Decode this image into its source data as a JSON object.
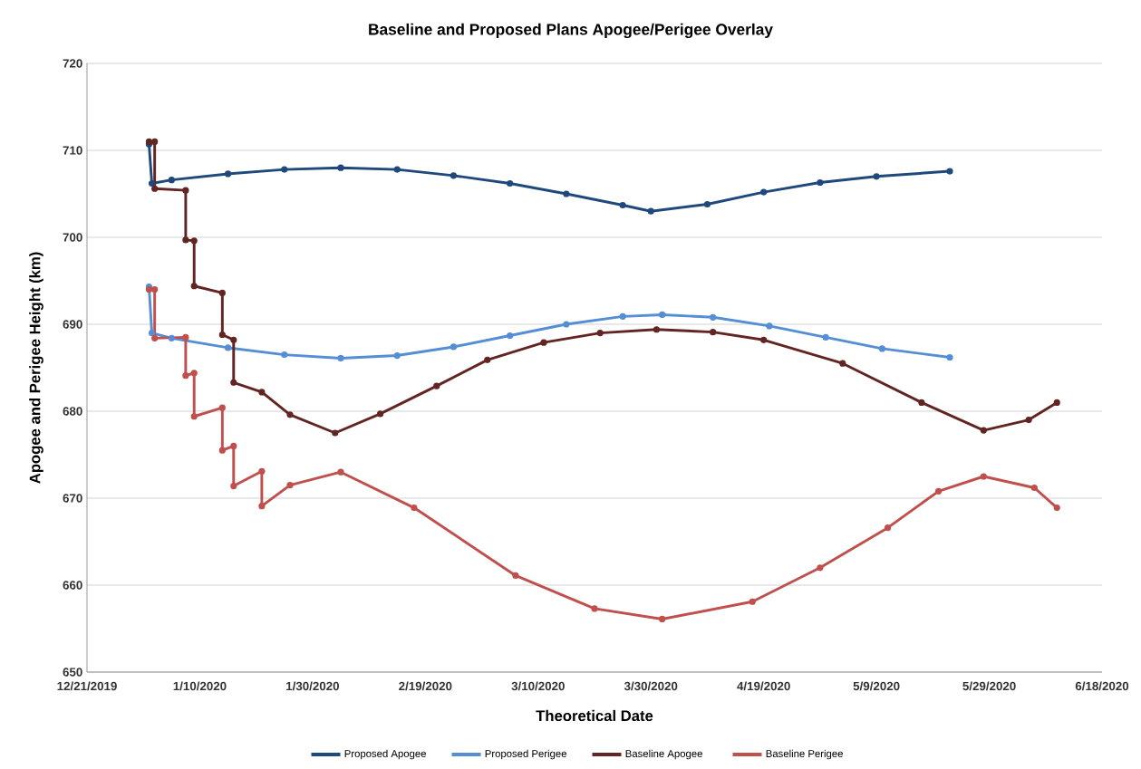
{
  "chart_data": {
    "type": "line",
    "title": "Baseline and Proposed Plans Apogee/Perigee Overlay",
    "xlabel": "Theoretical Date",
    "ylabel": "Apogee and Perigee Height (km)",
    "xlim": [
      "2019-12-21",
      "2020-06-18"
    ],
    "xticks": [
      {
        "value": "2019-12-21",
        "label": "12/21/2019"
      },
      {
        "value": "2020-01-10",
        "label": "1/10/2020"
      },
      {
        "value": "2020-01-30",
        "label": "1/30/2020"
      },
      {
        "value": "2020-02-19",
        "label": "2/19/2020"
      },
      {
        "value": "2020-03-10",
        "label": "3/10/2020"
      },
      {
        "value": "2020-03-30",
        "label": "3/30/2020"
      },
      {
        "value": "2020-04-19",
        "label": "4/19/2020"
      },
      {
        "value": "2020-05-09",
        "label": "5/9/2020"
      },
      {
        "value": "2020-05-29",
        "label": "5/29/2020"
      },
      {
        "value": "2020-06-18",
        "label": "6/18/2020"
      }
    ],
    "ylim": [
      650,
      720
    ],
    "yticks": [
      650,
      660,
      670,
      680,
      690,
      700,
      710,
      720
    ],
    "grid": "y",
    "legend": "bottom",
    "marker": "circle",
    "line_style": "solid",
    "series": [
      {
        "name": "Proposed Apogee",
        "color": "#1f497d",
        "x": [
          "2020-01-01",
          "2020-01-01T12:00",
          "2020-01-05",
          "2020-01-15",
          "2020-01-25",
          "2020-02-04",
          "2020-02-14",
          "2020-02-24",
          "2020-03-05",
          "2020-03-15",
          "2020-03-25",
          "2020-03-30",
          "2020-04-09",
          "2020-04-19",
          "2020-04-29",
          "2020-05-09",
          "2020-05-22"
        ],
        "values": [
          710.7,
          706.2,
          706.6,
          707.3,
          707.8,
          708.0,
          707.8,
          707.1,
          706.2,
          705.0,
          703.7,
          703.0,
          703.8,
          705.2,
          706.3,
          707.0,
          707.6
        ]
      },
      {
        "name": "Proposed Perigee",
        "color": "#558ed5",
        "x": [
          "2020-01-01",
          "2020-01-01T12:00",
          "2020-01-05",
          "2020-01-15",
          "2020-01-25",
          "2020-02-04",
          "2020-02-14",
          "2020-02-24",
          "2020-03-05",
          "2020-03-15",
          "2020-03-25",
          "2020-04-01",
          "2020-04-10",
          "2020-04-20",
          "2020-04-30",
          "2020-05-10",
          "2020-05-22"
        ],
        "values": [
          694.3,
          689.0,
          688.4,
          687.3,
          686.5,
          686.1,
          686.4,
          687.4,
          688.7,
          690.0,
          690.9,
          691.1,
          690.8,
          689.8,
          688.5,
          687.2,
          686.2
        ]
      },
      {
        "name": "Baseline Apogee",
        "color": "#632523",
        "x": [
          "2020-01-01",
          "2020-01-02",
          "2020-01-02",
          "2020-01-07T12:00",
          "2020-01-07T12:00",
          "2020-01-09",
          "2020-01-09",
          "2020-01-14",
          "2020-01-14",
          "2020-01-16",
          "2020-01-16",
          "2020-01-21",
          "2020-01-26",
          "2020-02-03",
          "2020-02-11",
          "2020-02-21",
          "2020-03-01",
          "2020-03-11",
          "2020-03-21",
          "2020-03-31",
          "2020-04-10",
          "2020-04-19",
          "2020-05-03",
          "2020-05-17",
          "2020-05-28",
          "2020-06-05",
          "2020-06-10"
        ],
        "values": [
          711.0,
          711.0,
          705.6,
          705.4,
          699.7,
          699.6,
          694.4,
          693.6,
          688.8,
          688.2,
          683.3,
          682.2,
          679.6,
          677.5,
          679.7,
          682.9,
          685.9,
          687.9,
          689.0,
          689.4,
          689.1,
          688.2,
          685.5,
          681.0,
          677.8,
          679.0,
          681.0
        ]
      },
      {
        "name": "Baseline Perigee",
        "color": "#c0504d",
        "x": [
          "2020-01-01",
          "2020-01-02",
          "2020-01-02",
          "2020-01-07T12:00",
          "2020-01-07T12:00",
          "2020-01-09",
          "2020-01-09",
          "2020-01-14",
          "2020-01-14",
          "2020-01-16",
          "2020-01-16",
          "2020-01-21",
          "2020-01-21",
          "2020-01-26",
          "2020-02-04",
          "2020-02-17",
          "2020-03-06",
          "2020-03-20",
          "2020-04-01",
          "2020-04-17",
          "2020-04-29",
          "2020-05-11",
          "2020-05-20",
          "2020-05-28",
          "2020-06-06",
          "2020-06-10"
        ],
        "values": [
          694.0,
          694.0,
          688.4,
          688.5,
          684.1,
          684.4,
          679.4,
          680.4,
          675.5,
          676.0,
          671.4,
          673.1,
          669.1,
          671.5,
          673.0,
          668.9,
          661.1,
          657.3,
          656.1,
          658.1,
          662.0,
          666.6,
          670.8,
          672.5,
          671.2,
          668.9
        ]
      }
    ]
  }
}
